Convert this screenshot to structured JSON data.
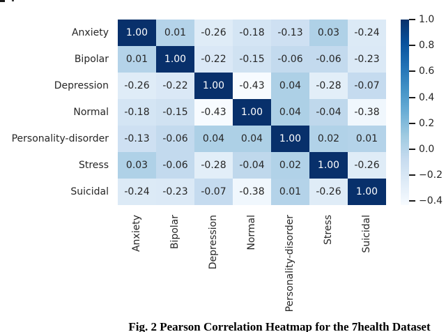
{
  "figure": {
    "caption": "Fig. 2 Pearson Correlation Heatmap for the 7health Dataset"
  },
  "chart_data": {
    "type": "heatmap",
    "title": "",
    "categories": [
      "Anxiety",
      "Bipolar",
      "Depression",
      "Normal",
      "Personality-disorder",
      "Stress",
      "Suicidal"
    ],
    "matrix": [
      [
        1.0,
        0.01,
        -0.26,
        -0.18,
        -0.13,
        0.03,
        -0.24
      ],
      [
        0.01,
        1.0,
        -0.22,
        -0.15,
        -0.06,
        -0.06,
        -0.23
      ],
      [
        -0.26,
        -0.22,
        1.0,
        -0.43,
        0.04,
        -0.28,
        -0.07
      ],
      [
        -0.18,
        -0.15,
        -0.43,
        1.0,
        0.04,
        -0.04,
        -0.38
      ],
      [
        -0.13,
        -0.06,
        0.04,
        0.04,
        1.0,
        0.02,
        0.01
      ],
      [
        0.03,
        -0.06,
        -0.28,
        -0.04,
        0.02,
        1.0,
        -0.26
      ],
      [
        -0.24,
        -0.23,
        -0.07,
        -0.38,
        0.01,
        -0.26,
        1.0
      ]
    ],
    "annotation_decimals": 2,
    "vmin": -0.43,
    "vmax": 1.0,
    "colormap": "Blues",
    "colorbar_position": "right",
    "colorbar_ticks": [
      {
        "label": "1.0",
        "value": 1.0
      },
      {
        "label": "0.8",
        "value": 0.8
      },
      {
        "label": "0.6",
        "value": 0.6
      },
      {
        "label": "0.4",
        "value": 0.4
      },
      {
        "label": "0.2",
        "value": 0.2
      },
      {
        "label": "0.0",
        "value": 0.0
      },
      {
        "label": "−0.2",
        "value": -0.2
      },
      {
        "label": "−0.4",
        "value": -0.4
      }
    ],
    "x_tick_label_rotation_deg": 90,
    "grid": false
  },
  "colors": {
    "background": "#ffffff",
    "blues_anchors": [
      "#f7fbff",
      "#deebf7",
      "#c6dbef",
      "#9ecae1",
      "#6baed6",
      "#4292c6",
      "#2171b5",
      "#08519c",
      "#08306b"
    ],
    "annotation_dark": "#262626",
    "annotation_light": "#ffffff",
    "tick_text": "#262626",
    "tick_mark": "#1a1a1a"
  }
}
